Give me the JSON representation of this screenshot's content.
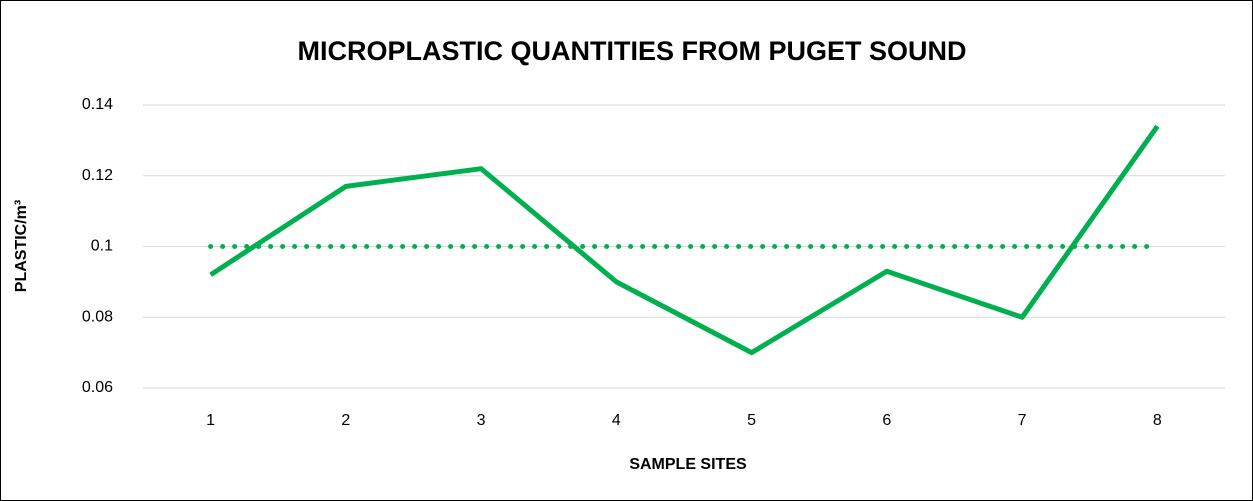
{
  "chart_data": {
    "type": "line",
    "title": "MICROPLASTIC QUANTITIES FROM PUGET SOUND",
    "xlabel": "SAMPLE SITES",
    "ylabel": "PLASTIC/m³",
    "categories": [
      "1",
      "2",
      "3",
      "4",
      "5",
      "6",
      "7",
      "8"
    ],
    "series": [
      {
        "color": "#00b050",
        "style": "solid",
        "values": [
          0.092,
          0.117,
          0.122,
          0.09,
          0.07,
          0.093,
          0.08,
          0.134
        ]
      },
      {
        "color": "#00b050",
        "style": "dotted",
        "values": [
          0.1,
          0.1,
          0.1,
          0.1,
          0.1,
          0.1,
          0.1,
          0.1
        ]
      }
    ],
    "ylim": [
      0.06,
      0.14
    ],
    "yticks": [
      0.06,
      0.08,
      0.1,
      0.12,
      0.14
    ],
    "grid": true
  }
}
